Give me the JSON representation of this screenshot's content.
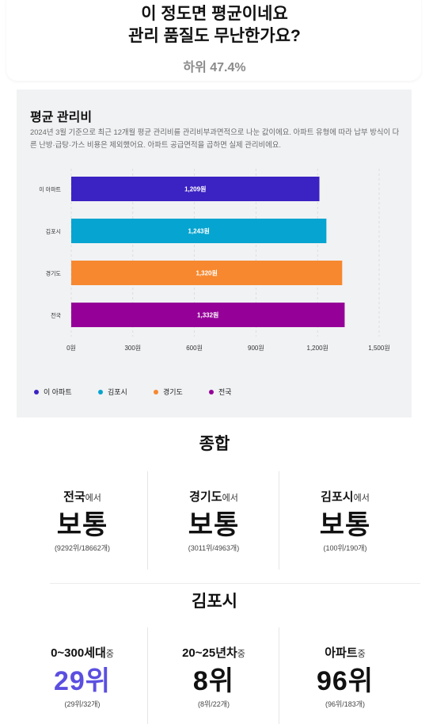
{
  "header": {
    "title_line1": "이 정도면 평균이네요",
    "title_line2": "관리 품질도 무난한가요?",
    "rank": "하위 47.4%"
  },
  "chart": {
    "title": "평균 관리비",
    "description": "2024년 3월 기준으로 최근 12개월 평균 관리비를 관리비부과면적으로 나눈 값이에요. 아파트 유형에 따라 납부 방식이 다른 난방·급탕·가스 비용은 제외했어요. 아파트 공급면적을 곱하면 실제 관리비에요."
  },
  "chart_data": {
    "type": "bar",
    "orientation": "horizontal",
    "categories": [
      "이 아파트",
      "김포시",
      "경기도",
      "전국"
    ],
    "values": [
      1209,
      1243,
      1320,
      1332
    ],
    "value_labels": [
      "1,209원",
      "1,243원",
      "1,320원",
      "1,332원"
    ],
    "colors": [
      "#3b22c2",
      "#06a4d0",
      "#f7882f",
      "#950098"
    ],
    "xlim": [
      0,
      1500
    ],
    "x_ticks": [
      0,
      300,
      600,
      900,
      1200,
      1500
    ],
    "x_tick_labels": [
      "0원",
      "300원",
      "600원",
      "900원",
      "1,200원",
      "1,500원"
    ],
    "grid": "vertical dashed",
    "legend": {
      "placement": "bottom-left",
      "items": [
        "이 아파트",
        "김포시",
        "경기도",
        "전국"
      ]
    }
  },
  "summary": {
    "title": "종합",
    "items": [
      {
        "label": "전국",
        "suffix": "에서",
        "value": "보통",
        "detail": "(9292위/18662개)"
      },
      {
        "label": "경기도",
        "suffix": "에서",
        "value": "보통",
        "detail": "(3011위/4963개)"
      },
      {
        "label": "김포시",
        "suffix": "에서",
        "value": "보통",
        "detail": "(100위/190개)"
      }
    ]
  },
  "local": {
    "title": "김포시",
    "items": [
      {
        "label": "0~300세대",
        "suffix": "중",
        "value": "29위",
        "detail": "(29위/32개)"
      },
      {
        "label": "20~25년차",
        "suffix": "중",
        "value": "8위",
        "detail": "(8위/22개)"
      },
      {
        "label": "아파트",
        "suffix": "중",
        "value": "96위",
        "detail": "(96위/183개)"
      }
    ]
  }
}
